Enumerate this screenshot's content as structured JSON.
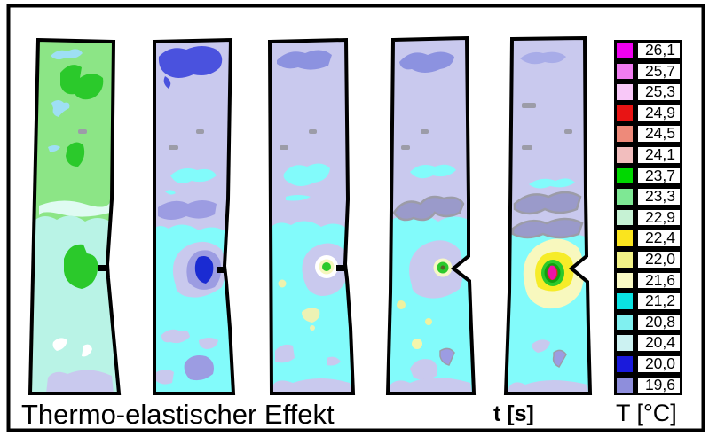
{
  "title": "Thermo-elastischer Effekt",
  "labels": {
    "time": "t [s]"
  },
  "legend": {
    "unit_label": "T [°C]",
    "items": [
      {
        "value": "26,1",
        "color": "#F000F0"
      },
      {
        "value": "25,7",
        "color": "#F07CF0"
      },
      {
        "value": "25,3",
        "color": "#F8C8F8"
      },
      {
        "value": "24,9",
        "color": "#E81414"
      },
      {
        "value": "24,5",
        "color": "#EE8A7A"
      },
      {
        "value": "24,1",
        "color": "#F2BEBE"
      },
      {
        "value": "23,7",
        "color": "#00D800"
      },
      {
        "value": "23,3",
        "color": "#7EE894"
      },
      {
        "value": "22,9",
        "color": "#C6F2D4"
      },
      {
        "value": "22,4",
        "color": "#FAE41E"
      },
      {
        "value": "22,0",
        "color": "#F2F286"
      },
      {
        "value": "21,6",
        "color": "#FAFAC4"
      },
      {
        "value": "21,2",
        "color": "#0AE2E2"
      },
      {
        "value": "20,8",
        "color": "#80F0F0"
      },
      {
        "value": "20,4",
        "color": "#CCF2F2"
      },
      {
        "value": "20,0",
        "color": "#1A1ADC"
      },
      {
        "value": "19,6",
        "color": "#8E8EDC"
      }
    ]
  },
  "chart_data": {
    "type": "heatmap",
    "title": "Thermo-elastischer Effekt",
    "sequence_axis_label": "t [s]",
    "colorbar_label": "T [°C]",
    "colorbar_ticks_celsius": [
      26.1,
      25.7,
      25.3,
      24.9,
      24.5,
      24.1,
      23.7,
      23.3,
      22.9,
      22.4,
      22.0,
      21.6,
      21.2,
      20.8,
      20.4,
      20.0,
      19.6
    ],
    "colorbar_colors": [
      "#F000F0",
      "#F07CF0",
      "#F8C8F8",
      "#E81414",
      "#EE8A7A",
      "#F2BEBE",
      "#00D800",
      "#7EE894",
      "#C6F2D4",
      "#FAE41E",
      "#F2F286",
      "#FAFAC4",
      "#0AE2E2",
      "#80F0F0",
      "#CCF2F2",
      "#1A1ADC",
      "#8E8EDC"
    ],
    "frames": [
      {
        "index": 1,
        "bulk_temp_top_c": 23.3,
        "bulk_temp_bottom_c": 20.6,
        "notch_zone_temp_c": 23.3,
        "note": "specimen mostly green (22.9-23.7) above, pale cyan below; no hot spot at notch"
      },
      {
        "index": 2,
        "bulk_temp_top_c": 19.6,
        "bulk_temp_bottom_c": 20.8,
        "notch_zone_temp_c": 20.0,
        "note": "thermoelastic cooling: dark blue spot (20.0) at notch, blue patch at top"
      },
      {
        "index": 3,
        "bulk_temp_top_c": 19.6,
        "bulk_temp_bottom_c": 20.8,
        "notch_zone_temp_c": 23.7,
        "note": "small green hot spot (23.7) with white/pale-yellow halo at notch"
      },
      {
        "index": 4,
        "bulk_temp_top_c": 19.6,
        "bulk_temp_bottom_c": 20.8,
        "notch_zone_temp_c": 23.7,
        "note": "green hot spot at V-notch, gray band across mid section"
      },
      {
        "index": 5,
        "bulk_temp_top_c": 19.6,
        "bulk_temp_bottom_c": 20.8,
        "notch_zone_temp_c": 26.1,
        "note": "strong heating at V-notch: magenta/red core (24.9-26.1) with green and yellow halo"
      }
    ]
  }
}
